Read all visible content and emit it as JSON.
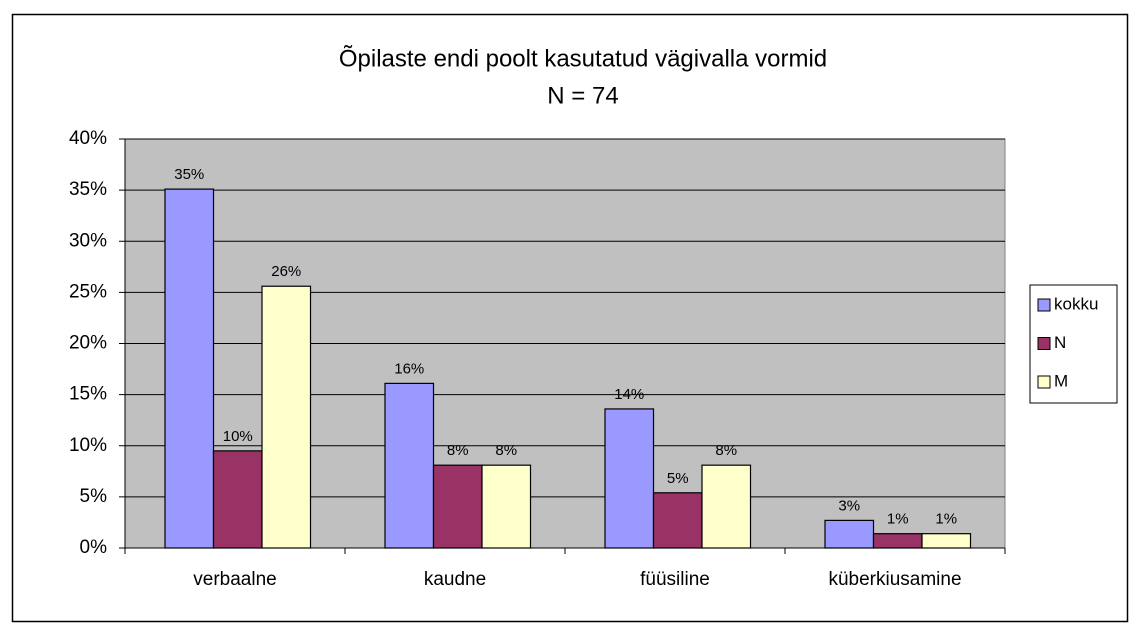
{
  "chart_data": {
    "type": "bar",
    "title": "Õpilaste endi poolt kasutatud vägivalla vormid",
    "subtitle": "N = 74",
    "categories": [
      "verbaalne",
      "kaudne",
      "füüsiline",
      "küberkiusamine"
    ],
    "series": [
      {
        "name": "kokku",
        "color": "#9999ff",
        "values": [
          35.1,
          16.1,
          13.6,
          2.7
        ],
        "value_labels": [
          "35%",
          "16%",
          "14%",
          "3%"
        ]
      },
      {
        "name": "N",
        "color": "#993366",
        "values": [
          9.5,
          8.1,
          5.4,
          1.4
        ],
        "value_labels": [
          "10%",
          "8%",
          "5%",
          "1%"
        ]
      },
      {
        "name": "M",
        "color": "#ffffcc",
        "values": [
          25.6,
          8.1,
          8.1,
          1.4
        ],
        "value_labels": [
          "26%",
          "8%",
          "8%",
          "1%"
        ]
      }
    ],
    "ylim": [
      0,
      40
    ],
    "yticks": [
      {
        "value": 0,
        "label": "0%"
      },
      {
        "value": 5,
        "label": "5%"
      },
      {
        "value": 10,
        "label": "10%"
      },
      {
        "value": 15,
        "label": "15%"
      },
      {
        "value": 20,
        "label": "20%"
      },
      {
        "value": 25,
        "label": "25%"
      },
      {
        "value": 30,
        "label": "30%"
      },
      {
        "value": 35,
        "label": "35%"
      },
      {
        "value": 40,
        "label": "40%"
      }
    ],
    "grid": true,
    "legend": "right"
  }
}
